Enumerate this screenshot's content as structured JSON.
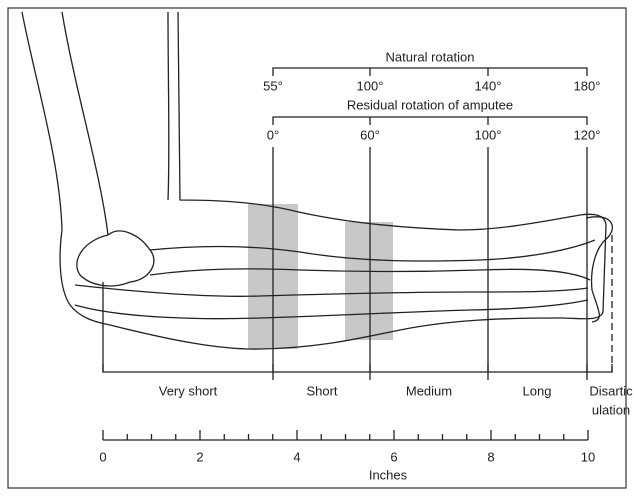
{
  "natural_rotation": {
    "title": "Natural rotation",
    "labels": [
      "55°",
      "100°",
      "140°",
      "180°"
    ]
  },
  "residual_rotation": {
    "title": "Residual rotation of amputee",
    "labels": [
      "0°",
      "60°",
      "100°",
      "120°"
    ]
  },
  "levels": [
    "Very short",
    "Short",
    "Medium",
    "Long"
  ],
  "disarticulation": [
    "Disartic",
    "ulation"
  ],
  "ruler": {
    "labels": [
      "0",
      "2",
      "4",
      "6",
      "8",
      "10"
    ],
    "unit": "Inches"
  }
}
